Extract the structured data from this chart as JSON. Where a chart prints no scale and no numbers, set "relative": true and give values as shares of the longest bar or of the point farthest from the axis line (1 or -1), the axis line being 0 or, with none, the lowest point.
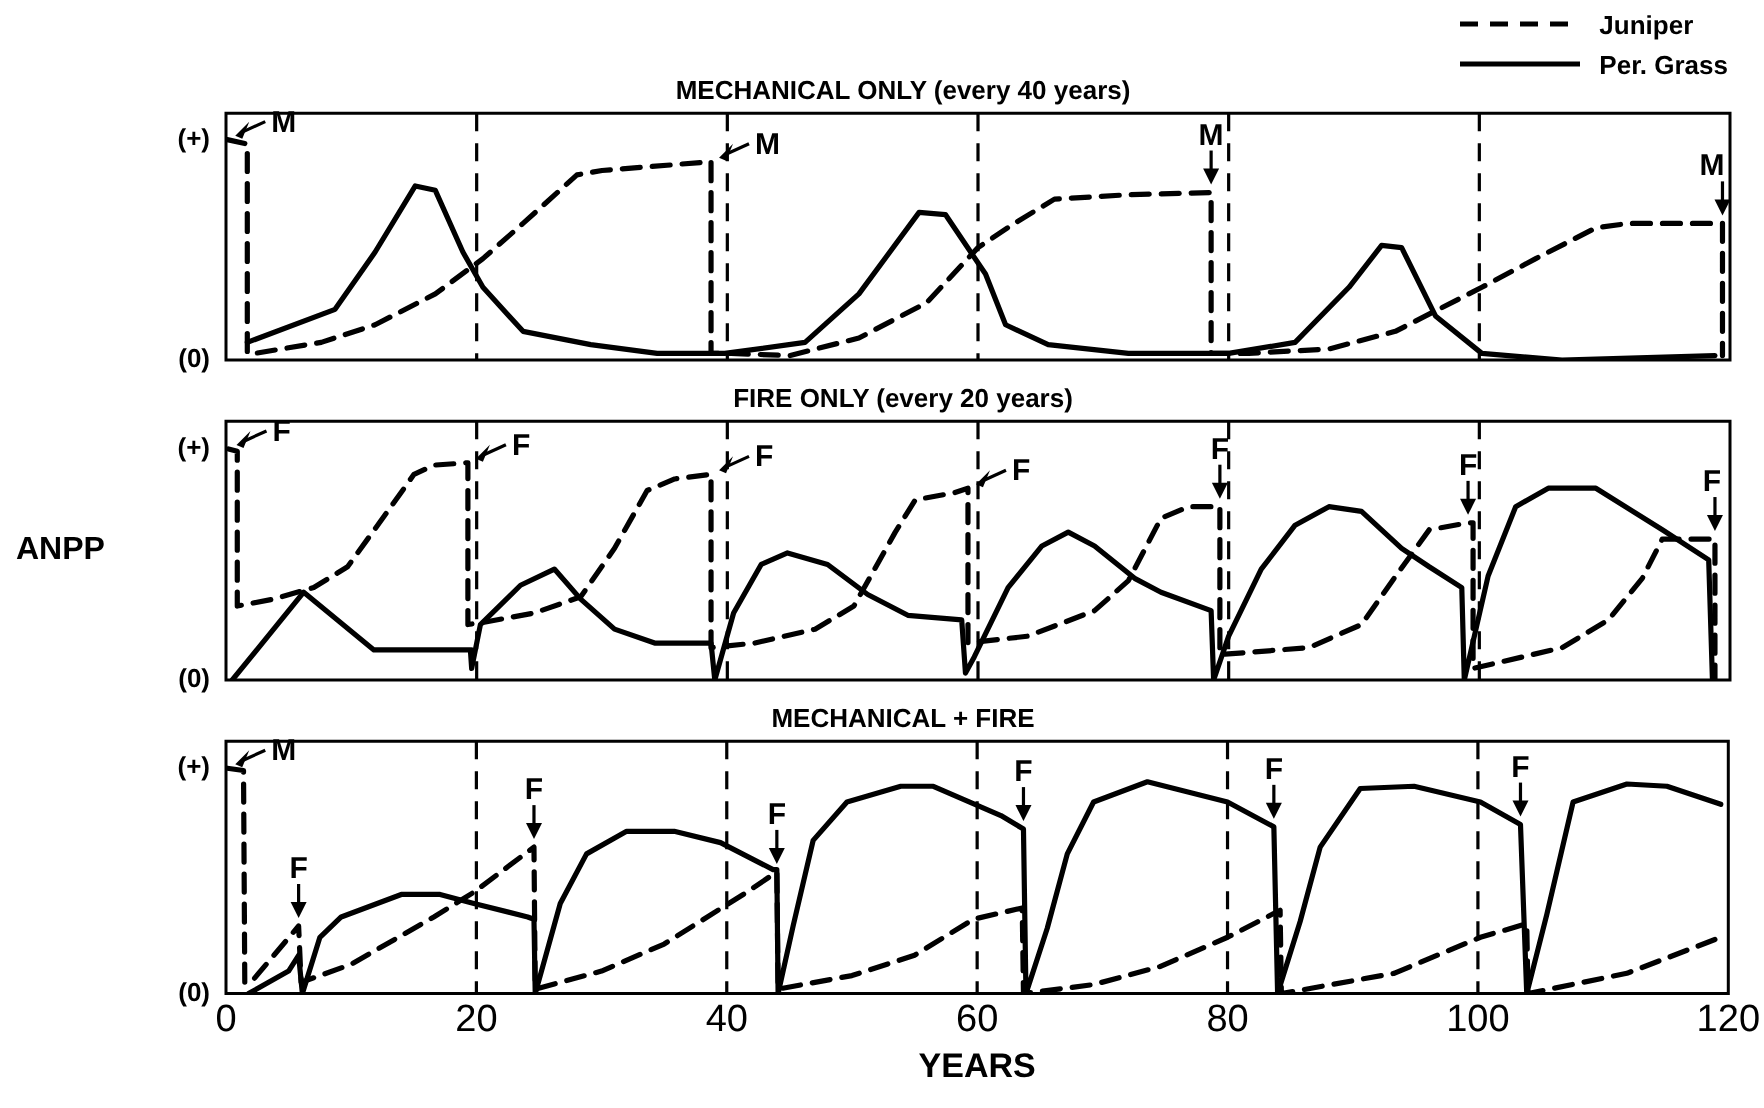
{
  "chart_data": [
    {
      "type": "line",
      "title": "MECHANICAL ONLY (every 40 years)",
      "relative": true,
      "xlim": [
        0,
        120
      ],
      "xticks": [
        0,
        20,
        40,
        60,
        80,
        100,
        120
      ],
      "tick_labels": false,
      "grid": false,
      "marker": "none",
      "legend": "top right",
      "series": [
        {
          "name": "Juniper",
          "color": "#000000",
          "line_style": "dashed",
          "x": [
            0.1,
            1.7,
            1.7,
            2.3,
            7.6,
            11.9,
            16.7,
            20.5,
            23.7,
            28,
            30,
            38.7,
            38.7,
            40.3,
            45,
            50.5,
            55.9,
            60,
            62.9,
            66.1,
            72,
            78.6,
            78.6,
            81.6,
            88,
            93.3,
            100.2,
            104.5,
            109.3,
            111.9,
            119.4,
            119.4
          ],
          "values": [
            1.0,
            0.98,
            0.03,
            0.03,
            0.08,
            0.16,
            0.3,
            0.46,
            0.62,
            0.84,
            0.86,
            0.9,
            0.03,
            0.03,
            0.02,
            0.1,
            0.26,
            0.51,
            0.62,
            0.73,
            0.75,
            0.76,
            0.03,
            0.03,
            0.05,
            0.13,
            0.33,
            0.46,
            0.6,
            0.62,
            0.62,
            0.02
          ]
        },
        {
          "name": "Per. Grass",
          "color": "#000000",
          "line_style": "solid",
          "x": [
            1.7,
            8.7,
            11.9,
            15.1,
            16.7,
            18.9,
            20.5,
            23.7,
            29.1,
            34.4,
            39.8,
            46.2,
            50.5,
            55.3,
            57.4,
            60.6,
            62.2,
            65.6,
            72,
            80,
            85.3,
            89.6,
            92.2,
            93.8,
            96.5,
            100.2,
            106.6,
            118.8
          ],
          "values": [
            0.08,
            0.23,
            0.49,
            0.79,
            0.77,
            0.49,
            0.33,
            0.13,
            0.07,
            0.03,
            0.03,
            0.08,
            0.3,
            0.67,
            0.66,
            0.39,
            0.16,
            0.07,
            0.03,
            0.03,
            0.08,
            0.33,
            0.52,
            0.51,
            0.2,
            0.03,
            0.0,
            0.02
          ]
        }
      ],
      "ref_lines": [
        {
          "axis": "x",
          "value": 20,
          "color": "#000000",
          "line_style": "dashed"
        },
        {
          "axis": "x",
          "value": 40,
          "color": "#000000",
          "line_style": "dashed"
        },
        {
          "axis": "x",
          "value": 60,
          "color": "#000000",
          "line_style": "dashed"
        },
        {
          "axis": "x",
          "value": 80,
          "color": "#000000",
          "line_style": "dashed"
        },
        {
          "axis": "x",
          "value": 100,
          "color": "#000000",
          "line_style": "dashed"
        }
      ],
      "annotations": [
        "(+)",
        "(0)",
        {
          "text": "M",
          "x": 0.1,
          "y": 1.0
        },
        {
          "text": "M",
          "x": 38.7,
          "y": 0.9
        },
        {
          "text": "M",
          "x": 78.6,
          "y": 0.76
        },
        {
          "text": "M",
          "x": 119.4,
          "y": 0.62
        }
      ]
    },
    {
      "type": "line",
      "title": "FIRE ONLY (every 20 years)",
      "ylabel": "ANPP",
      "relative": true,
      "xlim": [
        0,
        120
      ],
      "xticks": [
        0,
        20,
        40,
        60,
        80,
        100,
        120
      ],
      "tick_labels": false,
      "grid": false,
      "marker": "none",
      "series": [
        {
          "color": "#000000",
          "line_style": "dashed",
          "x": [
            0.2,
            0.9,
            0.9,
            3.8,
            7,
            9.7,
            12.9,
            15,
            16.6,
            19.3,
            19.3,
            20.6,
            24.6,
            28.3,
            31,
            33.6,
            35.8,
            38.7,
            38.7,
            42.2,
            47,
            50.1,
            53.4,
            55,
            58.1,
            59.2,
            59.2,
            64,
            69.3,
            72,
            74.6,
            76.8,
            79.0,
            79.3,
            79.3,
            86.4,
            90.6,
            93.2,
            96,
            99.1,
            99.5,
            99.5,
            106.6,
            110.3,
            113,
            114.6,
            116.2,
            118.8,
            118.8
          ],
          "values": [
            1.0,
            0.99,
            0.32,
            0.35,
            0.4,
            0.49,
            0.73,
            0.89,
            0.93,
            0.94,
            0.24,
            0.25,
            0.29,
            0.36,
            0.57,
            0.82,
            0.87,
            0.89,
            0.14,
            0.16,
            0.22,
            0.32,
            0.64,
            0.78,
            0.81,
            0.83,
            0.16,
            0.19,
            0.3,
            0.43,
            0.7,
            0.75,
            0.75,
            0.75,
            0.11,
            0.14,
            0.24,
            0.44,
            0.65,
            0.68,
            0.68,
            0.05,
            0.14,
            0.26,
            0.44,
            0.61,
            0.61,
            0.61,
            0.0
          ]
        },
        {
          "color": "#000000",
          "line_style": "solid",
          "x": [
            0.5,
            6.2,
            11.8,
            19.5,
            19.6,
            20.3,
            23.5,
            26.2,
            28.3,
            31,
            34.2,
            38.7,
            39,
            40.5,
            42.7,
            44.8,
            48,
            51.2,
            54.4,
            58.7,
            59,
            59.7,
            62.4,
            65.1,
            67.2,
            69.3,
            72.5,
            74.6,
            78.6,
            78.8,
            80,
            82.6,
            85.3,
            88,
            90.6,
            93.8,
            96,
            98.6,
            98.8,
            100.7,
            102.9,
            105.5,
            109.3,
            114.6,
            118.3,
            118.6
          ],
          "values": [
            0.0,
            0.38,
            0.13,
            0.13,
            0.05,
            0.24,
            0.41,
            0.48,
            0.35,
            0.22,
            0.16,
            0.16,
            0.0,
            0.29,
            0.5,
            0.55,
            0.5,
            0.37,
            0.28,
            0.26,
            0.03,
            0.1,
            0.4,
            0.58,
            0.64,
            0.58,
            0.44,
            0.38,
            0.3,
            0.0,
            0.19,
            0.48,
            0.67,
            0.75,
            0.73,
            0.57,
            0.49,
            0.4,
            0.0,
            0.45,
            0.75,
            0.83,
            0.83,
            0.65,
            0.52,
            0.0
          ]
        }
      ],
      "ref_lines": [
        {
          "axis": "x",
          "value": 20,
          "color": "#000000",
          "line_style": "dashed"
        },
        {
          "axis": "x",
          "value": 40,
          "color": "#000000",
          "line_style": "dashed"
        },
        {
          "axis": "x",
          "value": 60,
          "color": "#000000",
          "line_style": "dashed"
        },
        {
          "axis": "x",
          "value": 80,
          "color": "#000000",
          "line_style": "dashed"
        },
        {
          "axis": "x",
          "value": 100,
          "color": "#000000",
          "line_style": "dashed"
        }
      ],
      "annotations": [
        "(+)",
        "(0)",
        {
          "text": "F",
          "x": 0.2,
          "y": 1.0
        },
        {
          "text": "F",
          "x": 19.3,
          "y": 0.94
        },
        {
          "text": "F",
          "x": 38.7,
          "y": 0.89
        },
        {
          "text": "F",
          "x": 59.2,
          "y": 0.83
        },
        {
          "text": "F",
          "x": 79.3,
          "y": 0.75
        },
        {
          "text": "F",
          "x": 99.1,
          "y": 0.68
        },
        {
          "text": "F",
          "x": 118.8,
          "y": 0.61
        }
      ]
    },
    {
      "type": "line",
      "title": "MECHANICAL + FIRE",
      "xlabel": "YEARS",
      "relative": true,
      "xlim": [
        0,
        120
      ],
      "xticks": [
        0,
        20,
        40,
        60,
        80,
        100,
        120
      ],
      "tick_labels": "x",
      "grid": false,
      "marker": "none",
      "series": [
        {
          "color": "#000000",
          "line_style": "dashed",
          "x": [
            0.1,
            1.4,
            1.5,
            2,
            5.8,
            6,
            10,
            16.6,
            19.8,
            24.6,
            24.7,
            30,
            35,
            41.6,
            44,
            44.1,
            50,
            55,
            59.7,
            63.6,
            63.7,
            69.3,
            74.6,
            80,
            84.2,
            84.3,
            93.3,
            100.2,
            103.9,
            104,
            111.9,
            119.4
          ],
          "values": [
            1.0,
            0.99,
            0.05,
            0.05,
            0.3,
            0.05,
            0.13,
            0.34,
            0.45,
            0.65,
            0.02,
            0.1,
            0.22,
            0.45,
            0.54,
            0.02,
            0.08,
            0.17,
            0.33,
            0.38,
            0.0,
            0.04,
            0.12,
            0.25,
            0.37,
            0.0,
            0.09,
            0.25,
            0.31,
            0.0,
            0.09,
            0.25
          ]
        },
        {
          "color": "#000000",
          "line_style": "solid",
          "x": [
            1.8,
            5,
            5.8,
            6.1,
            7.5,
            9.2,
            14,
            17.1,
            19.8,
            24.1,
            24.6,
            24.7,
            26.7,
            28.8,
            32,
            35.8,
            39.5,
            43.7,
            44,
            44.1,
            45.3,
            46.9,
            49.6,
            53.9,
            56.5,
            61.9,
            63.7,
            63.9,
            65.6,
            67.2,
            69.3,
            73.6,
            80,
            83.7,
            84,
            85.8,
            87.4,
            90.6,
            94.9,
            100.2,
            103.4,
            103.9,
            105.5,
            107.6,
            111.9,
            115.1,
            119.4
          ],
          "values": [
            0.0,
            0.1,
            0.17,
            0.0,
            0.25,
            0.34,
            0.44,
            0.44,
            0.4,
            0.34,
            0.33,
            0.0,
            0.4,
            0.62,
            0.72,
            0.72,
            0.67,
            0.55,
            0.55,
            0.0,
            0.3,
            0.68,
            0.85,
            0.92,
            0.92,
            0.79,
            0.73,
            0.0,
            0.29,
            0.62,
            0.85,
            0.94,
            0.85,
            0.74,
            0.0,
            0.32,
            0.65,
            0.91,
            0.92,
            0.85,
            0.75,
            0.0,
            0.35,
            0.85,
            0.93,
            0.92,
            0.84
          ]
        }
      ],
      "ref_lines": [
        {
          "axis": "x",
          "value": 20,
          "color": "#000000",
          "line_style": "dashed"
        },
        {
          "axis": "x",
          "value": 40,
          "color": "#000000",
          "line_style": "dashed"
        },
        {
          "axis": "x",
          "value": 60,
          "color": "#000000",
          "line_style": "dashed"
        },
        {
          "axis": "x",
          "value": 80,
          "color": "#000000",
          "line_style": "dashed"
        },
        {
          "axis": "x",
          "value": 100,
          "color": "#000000",
          "line_style": "dashed"
        }
      ],
      "annotations": [
        "(+)",
        "(0)",
        {
          "text": "M",
          "x": 0.1,
          "y": 1.0
        },
        {
          "text": "F",
          "x": 5.8,
          "y": 0.3
        },
        {
          "text": "F",
          "x": 24.6,
          "y": 0.65
        },
        {
          "text": "F",
          "x": 44,
          "y": 0.54
        },
        {
          "text": "F",
          "x": 63.7,
          "y": 0.73
        },
        {
          "text": "F",
          "x": 83.7,
          "y": 0.74
        },
        {
          "text": "F",
          "x": 103.4,
          "y": 0.75
        }
      ]
    }
  ]
}
